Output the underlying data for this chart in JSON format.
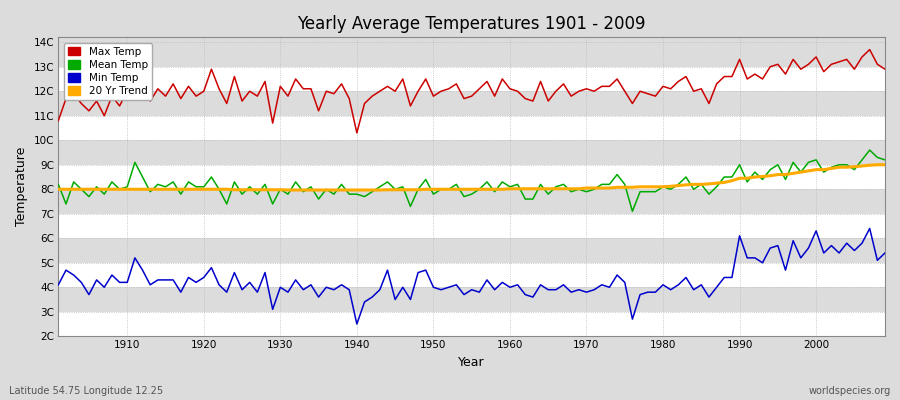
{
  "title": "Yearly Average Temperatures 1901 - 2009",
  "xlabel": "Year",
  "ylabel": "Temperature",
  "subtitle_left": "Latitude 54.75 Longitude 12.25",
  "subtitle_right": "worldspecies.org",
  "legend_labels": [
    "Max Temp",
    "Mean Temp",
    "Min Temp",
    "20 Yr Trend"
  ],
  "legend_colors": [
    "#cc0000",
    "#00aa00",
    "#0000cc",
    "#ffaa00"
  ],
  "bg_color": "#dcdcdc",
  "yticks": [
    "2C",
    "3C",
    "4C",
    "5C",
    "6C",
    "7C",
    "8C",
    "9C",
    "10C",
    "11C",
    "12C",
    "13C",
    "14C"
  ],
  "yvalues": [
    2,
    3,
    4,
    5,
    6,
    7,
    8,
    9,
    10,
    11,
    12,
    13,
    14
  ],
  "ylim": [
    2,
    14.2
  ],
  "xlim": [
    1901,
    2009
  ],
  "years": [
    1901,
    1902,
    1903,
    1904,
    1905,
    1906,
    1907,
    1908,
    1909,
    1910,
    1911,
    1912,
    1913,
    1914,
    1915,
    1916,
    1917,
    1918,
    1919,
    1920,
    1921,
    1922,
    1923,
    1924,
    1925,
    1926,
    1927,
    1928,
    1929,
    1930,
    1931,
    1932,
    1933,
    1934,
    1935,
    1936,
    1937,
    1938,
    1939,
    1940,
    1941,
    1942,
    1943,
    1944,
    1945,
    1946,
    1947,
    1948,
    1949,
    1950,
    1951,
    1952,
    1953,
    1954,
    1955,
    1956,
    1957,
    1958,
    1959,
    1960,
    1961,
    1962,
    1963,
    1964,
    1965,
    1966,
    1967,
    1968,
    1969,
    1970,
    1971,
    1972,
    1973,
    1974,
    1975,
    1976,
    1977,
    1978,
    1979,
    1980,
    1981,
    1982,
    1983,
    1984,
    1985,
    1986,
    1987,
    1988,
    1989,
    1990,
    1991,
    1992,
    1993,
    1994,
    1995,
    1996,
    1997,
    1998,
    1999,
    2000,
    2001,
    2002,
    2003,
    2004,
    2005,
    2006,
    2007,
    2008,
    2009
  ],
  "max_temp": [
    10.8,
    11.7,
    11.9,
    11.5,
    11.2,
    11.6,
    11.0,
    11.8,
    11.4,
    12.0,
    13.0,
    12.5,
    11.6,
    12.1,
    11.8,
    12.3,
    11.7,
    12.2,
    11.8,
    12.0,
    12.9,
    12.1,
    11.5,
    12.6,
    11.6,
    12.0,
    11.8,
    12.4,
    10.7,
    12.2,
    11.8,
    12.5,
    12.1,
    12.1,
    11.2,
    12.0,
    11.9,
    12.3,
    11.7,
    10.3,
    11.5,
    11.8,
    12.0,
    12.2,
    12.0,
    12.5,
    11.4,
    12.0,
    12.5,
    11.8,
    12.0,
    12.1,
    12.3,
    11.7,
    11.8,
    12.1,
    12.4,
    11.8,
    12.5,
    12.1,
    12.0,
    11.7,
    11.6,
    12.4,
    11.6,
    12.0,
    12.3,
    11.8,
    12.0,
    12.1,
    12.0,
    12.2,
    12.2,
    12.5,
    12.0,
    11.5,
    12.0,
    11.9,
    11.8,
    12.2,
    12.1,
    12.4,
    12.6,
    12.0,
    12.1,
    11.5,
    12.3,
    12.6,
    12.6,
    13.3,
    12.5,
    12.7,
    12.5,
    13.0,
    13.1,
    12.7,
    13.3,
    12.9,
    13.1,
    13.4,
    12.8,
    13.1,
    13.2,
    13.3,
    12.9,
    13.4,
    13.7,
    13.1,
    12.9
  ],
  "mean_temp": [
    8.2,
    7.4,
    8.3,
    8.0,
    7.7,
    8.1,
    7.8,
    8.3,
    8.0,
    8.1,
    9.1,
    8.5,
    7.9,
    8.2,
    8.1,
    8.3,
    7.8,
    8.3,
    8.1,
    8.1,
    8.5,
    8.0,
    7.4,
    8.3,
    7.8,
    8.1,
    7.8,
    8.2,
    7.4,
    8.0,
    7.8,
    8.3,
    7.9,
    8.1,
    7.6,
    8.0,
    7.8,
    8.2,
    7.8,
    7.8,
    7.7,
    7.9,
    8.1,
    8.3,
    8.0,
    8.1,
    7.3,
    8.0,
    8.4,
    7.8,
    8.0,
    8.0,
    8.2,
    7.7,
    7.8,
    8.0,
    8.3,
    7.9,
    8.3,
    8.1,
    8.2,
    7.6,
    7.6,
    8.2,
    7.8,
    8.1,
    8.2,
    7.9,
    8.0,
    7.9,
    8.0,
    8.2,
    8.2,
    8.6,
    8.2,
    7.1,
    7.9,
    7.9,
    7.9,
    8.1,
    8.0,
    8.2,
    8.5,
    8.0,
    8.2,
    7.8,
    8.1,
    8.5,
    8.5,
    9.0,
    8.3,
    8.7,
    8.4,
    8.8,
    9.0,
    8.4,
    9.1,
    8.7,
    9.1,
    9.2,
    8.7,
    8.9,
    9.0,
    9.0,
    8.8,
    9.2,
    9.6,
    9.3,
    9.2
  ],
  "min_temp": [
    4.1,
    4.7,
    4.5,
    4.2,
    3.7,
    4.3,
    4.0,
    4.5,
    4.2,
    4.2,
    5.2,
    4.7,
    4.1,
    4.3,
    4.3,
    4.3,
    3.8,
    4.4,
    4.2,
    4.4,
    4.8,
    4.1,
    3.8,
    4.6,
    3.9,
    4.2,
    3.8,
    4.6,
    3.1,
    4.0,
    3.8,
    4.3,
    3.9,
    4.1,
    3.6,
    4.0,
    3.9,
    4.1,
    3.9,
    2.5,
    3.4,
    3.6,
    3.9,
    4.7,
    3.5,
    4.0,
    3.5,
    4.6,
    4.7,
    4.0,
    3.9,
    4.0,
    4.1,
    3.7,
    3.9,
    3.8,
    4.3,
    3.9,
    4.2,
    4.0,
    4.1,
    3.7,
    3.6,
    4.1,
    3.9,
    3.9,
    4.1,
    3.8,
    3.9,
    3.8,
    3.9,
    4.1,
    4.0,
    4.5,
    4.2,
    2.7,
    3.7,
    3.8,
    3.8,
    4.1,
    3.9,
    4.1,
    4.4,
    3.9,
    4.1,
    3.6,
    4.0,
    4.4,
    4.4,
    6.1,
    5.2,
    5.2,
    5.0,
    5.6,
    5.7,
    4.7,
    5.9,
    5.2,
    5.6,
    6.3,
    5.4,
    5.7,
    5.4,
    5.8,
    5.5,
    5.8,
    6.4,
    5.1,
    5.4
  ],
  "trend": [
    8.0,
    8.0,
    8.0,
    8.0,
    8.0,
    8.0,
    8.0,
    8.0,
    8.0,
    8.0,
    8.0,
    8.0,
    8.0,
    8.0,
    8.0,
    8.0,
    8.0,
    8.0,
    8.0,
    8.0,
    8.0,
    8.0,
    8.0,
    7.98,
    7.98,
    7.98,
    7.98,
    7.98,
    7.98,
    7.98,
    7.97,
    7.97,
    7.97,
    7.97,
    7.97,
    7.97,
    7.97,
    7.97,
    7.97,
    7.97,
    7.97,
    7.97,
    7.97,
    7.98,
    7.98,
    7.98,
    7.98,
    7.98,
    8.0,
    8.0,
    8.0,
    8.0,
    8.0,
    8.0,
    8.0,
    8.0,
    8.0,
    8.0,
    8.0,
    8.02,
    8.02,
    8.02,
    8.02,
    8.02,
    8.02,
    8.02,
    8.02,
    8.02,
    8.02,
    8.05,
    8.05,
    8.05,
    8.05,
    8.08,
    8.08,
    8.08,
    8.1,
    8.1,
    8.1,
    8.1,
    8.12,
    8.15,
    8.18,
    8.2,
    8.2,
    8.22,
    8.25,
    8.28,
    8.35,
    8.45,
    8.45,
    8.5,
    8.52,
    8.55,
    8.6,
    8.6,
    8.65,
    8.7,
    8.75,
    8.8,
    8.8,
    8.85,
    8.9,
    8.9,
    8.92,
    8.95,
    8.98,
    9.0,
    9.0
  ]
}
